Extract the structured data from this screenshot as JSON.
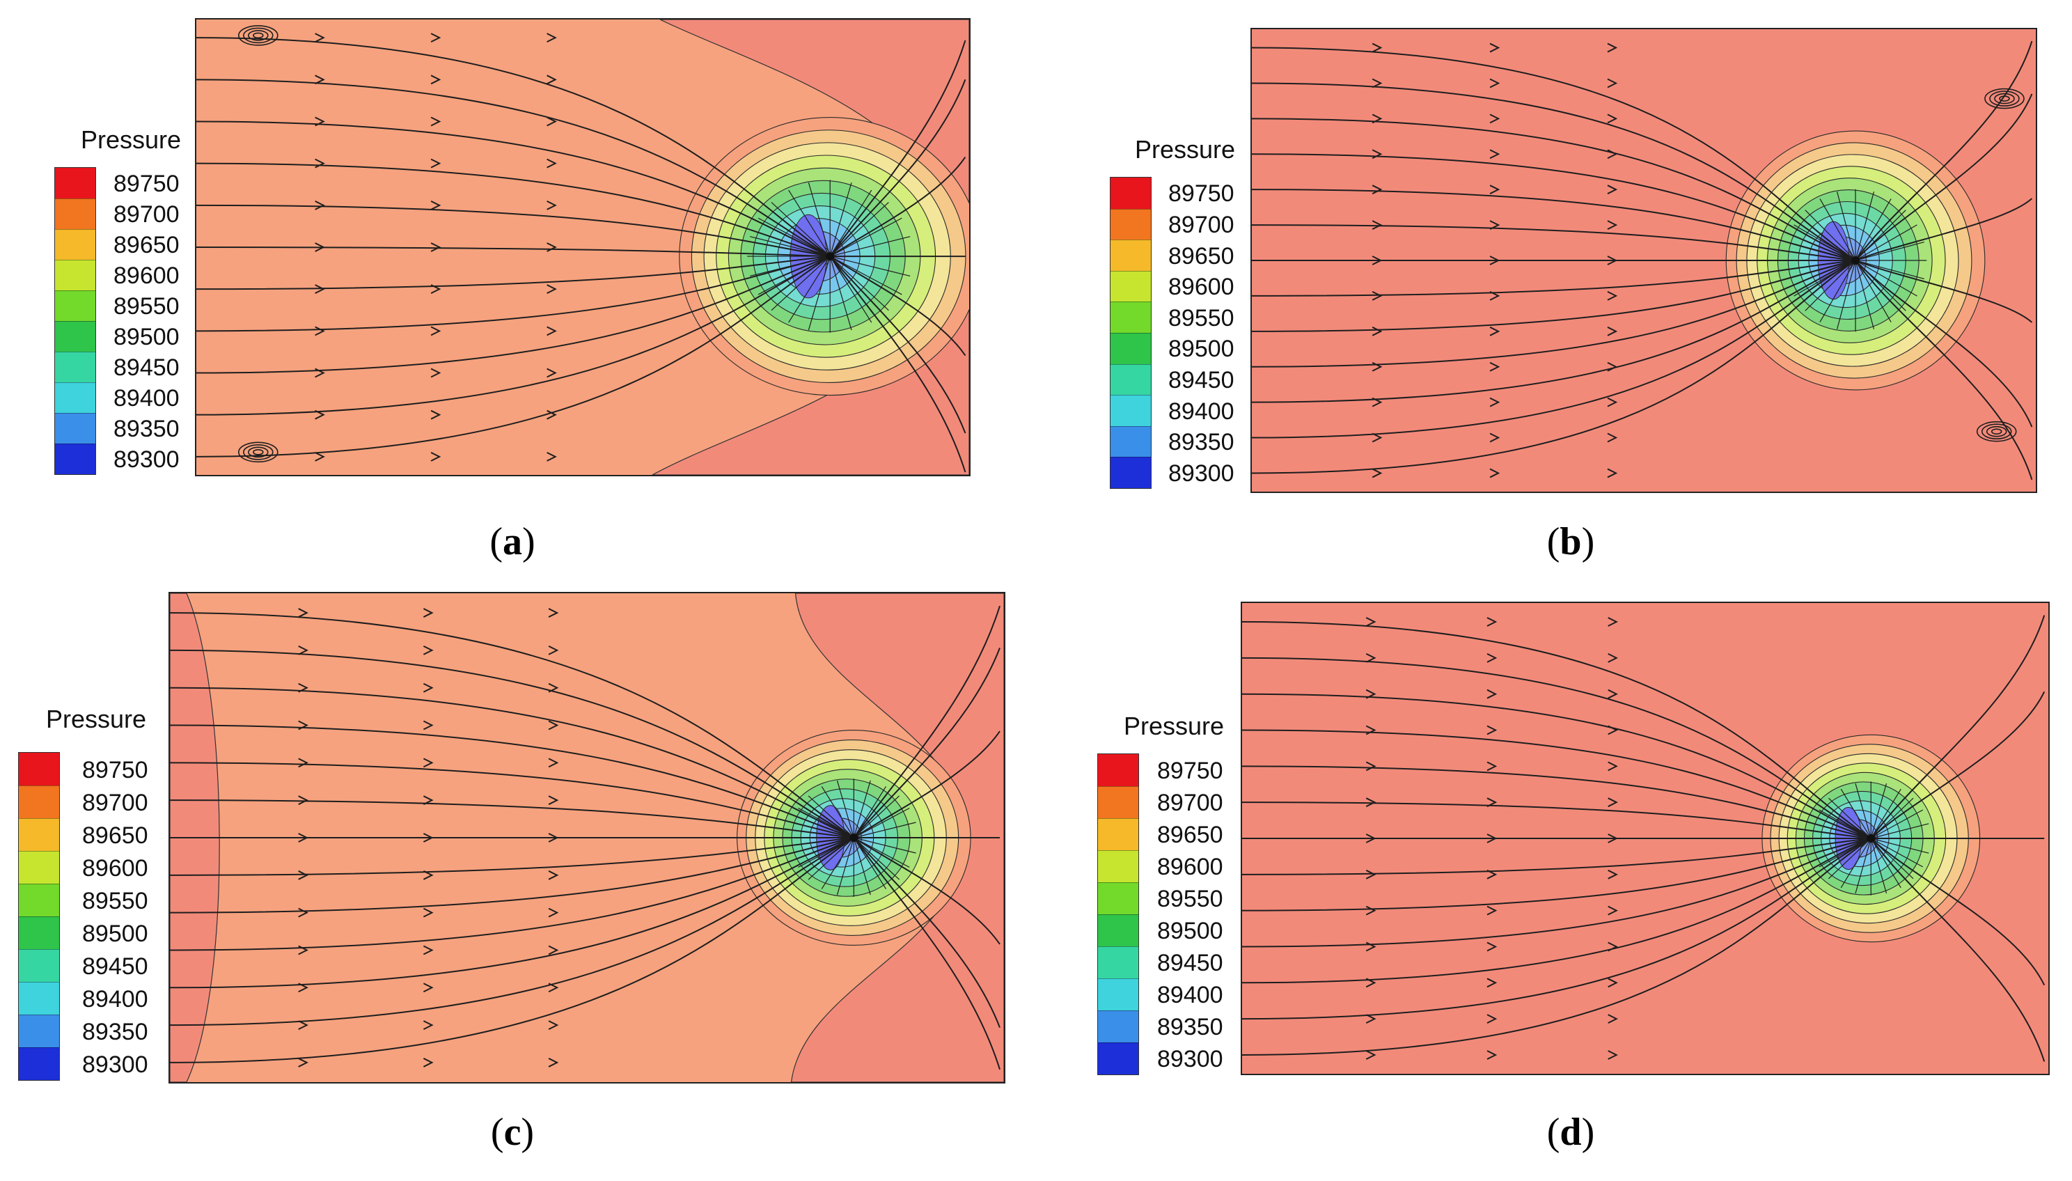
{
  "chart_data": [
    {
      "type": "contour",
      "panel": "a",
      "caption": "a",
      "legend_title": "Pressure",
      "levels": [
        89750,
        89700,
        89650,
        89600,
        89550,
        89500,
        89450,
        89400,
        89350,
        89300
      ],
      "colors": [
        "#e8151d",
        "#f2751f",
        "#f5b92a",
        "#c7e52f",
        "#73d92b",
        "#2fc44a",
        "#36d6a2",
        "#3ed3dd",
        "#3a8fe8",
        "#1d2fd8"
      ],
      "background_colors": [
        "#f6a27e",
        "#f28a7a"
      ],
      "vortices": [
        "top-left",
        "bottom-left"
      ]
    },
    {
      "type": "contour",
      "panel": "b",
      "caption": "b",
      "legend_title": "Pressure",
      "levels": [
        89750,
        89700,
        89650,
        89600,
        89550,
        89500,
        89450,
        89400,
        89350,
        89300
      ],
      "colors": [
        "#e8151d",
        "#f2751f",
        "#f5b92a",
        "#c7e52f",
        "#73d92b",
        "#2fc44a",
        "#36d6a2",
        "#3ed3dd",
        "#3a8fe8",
        "#1d2fd8"
      ],
      "background_colors": [
        "#f28a7a"
      ],
      "vortices": [
        "top-right",
        "bottom-right"
      ]
    },
    {
      "type": "contour",
      "panel": "c",
      "caption": "c",
      "legend_title": "Pressure",
      "levels": [
        89750,
        89700,
        89650,
        89600,
        89550,
        89500,
        89450,
        89400,
        89350,
        89300
      ],
      "colors": [
        "#e8151d",
        "#f2751f",
        "#f5b92a",
        "#c7e52f",
        "#73d92b",
        "#2fc44a",
        "#36d6a2",
        "#3ed3dd",
        "#3a8fe8",
        "#1d2fd8"
      ],
      "background_colors": [
        "#f6a27e",
        "#f28a7a"
      ],
      "vortices": []
    },
    {
      "type": "contour",
      "panel": "d",
      "caption": "d",
      "legend_title": "Pressure",
      "levels": [
        89750,
        89700,
        89650,
        89600,
        89550,
        89500,
        89450,
        89400,
        89350,
        89300
      ],
      "colors": [
        "#e8151d",
        "#f2751f",
        "#f5b92a",
        "#c7e52f",
        "#73d92b",
        "#2fc44a",
        "#36d6a2",
        "#3ed3dd",
        "#3a8fe8",
        "#1d2fd8"
      ],
      "background_colors": [
        "#f28a7a"
      ],
      "vortices": []
    }
  ]
}
